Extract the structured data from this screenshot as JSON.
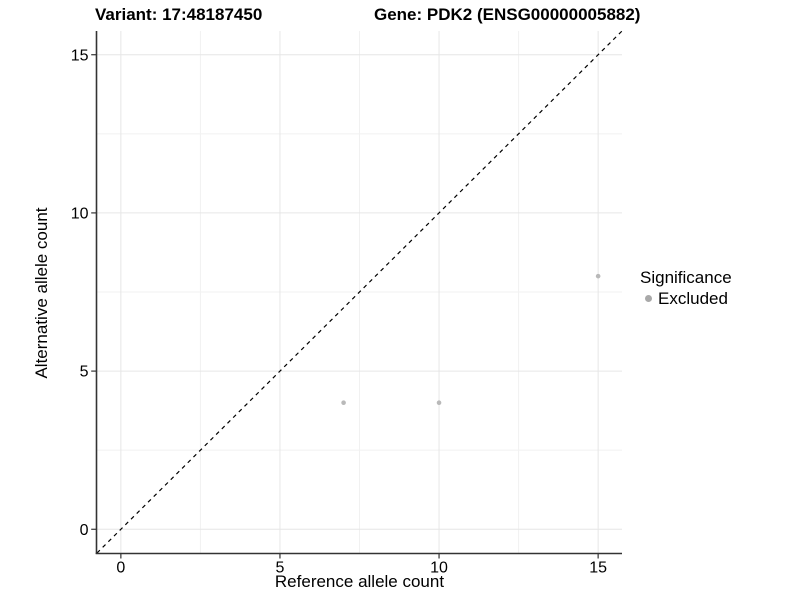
{
  "header": {
    "variant_title": "Variant: 17:48187450",
    "gene_title": "Gene: PDK2 (ENSG00000005882)"
  },
  "axes": {
    "x_label": "Reference allele count",
    "y_label": "Alternative allele count"
  },
  "legend": {
    "title": "Significance",
    "items": [
      {
        "label": "Excluded",
        "color": "#a9a9a9"
      }
    ]
  },
  "colors": {
    "point": "#b9b9b9",
    "grid_major": "#e6e6e6",
    "grid_minor": "#f1f1f1",
    "axis_line": "#333333",
    "tick": "#333333",
    "identity_line": "#000000",
    "text": "#000000",
    "background": "#ffffff"
  },
  "chart_data": {
    "type": "scatter",
    "title": "Variant: 17:48187450 / Gene: PDK2 (ENSG00000005882)",
    "xlabel": "Reference allele count",
    "ylabel": "Alternative allele count",
    "xlim": [
      -0.75,
      15.75
    ],
    "ylim": [
      -0.75,
      15.75
    ],
    "x_ticks": [
      0,
      5,
      10,
      15
    ],
    "y_ticks": [
      0,
      5,
      10,
      15
    ],
    "x_minor_ticks": [
      2.5,
      7.5,
      12.5
    ],
    "y_minor_ticks": [
      2.5,
      7.5,
      12.5
    ],
    "grid": "on",
    "legend_position": "right",
    "legend_title": "Significance",
    "identity_line": {
      "slope": 1,
      "intercept": 0,
      "linestyle": "dashed"
    },
    "series": [
      {
        "name": "Excluded",
        "color": "#b9b9b9",
        "points": [
          {
            "x": 7,
            "y": 4
          },
          {
            "x": 10,
            "y": 4
          },
          {
            "x": 15,
            "y": 8
          }
        ]
      }
    ]
  }
}
